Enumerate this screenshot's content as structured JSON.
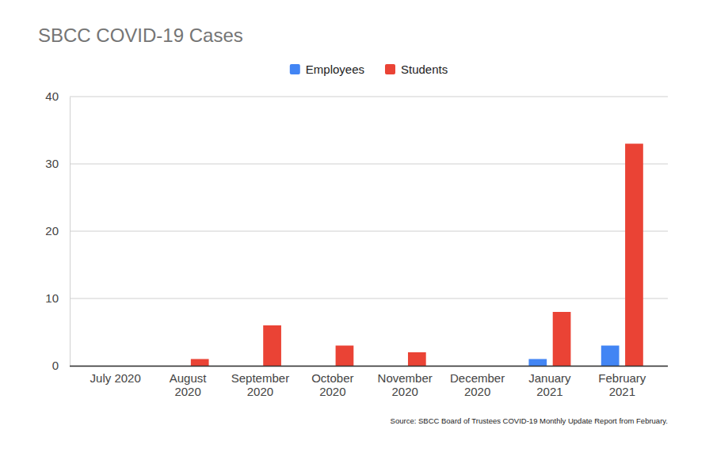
{
  "chart_data": {
    "type": "bar",
    "title": "SBCC COVID-19 Cases",
    "source": "Source: SBCC Board of Trustees COVID-19 Monthly Update Report from February.",
    "categories": [
      "July 2020",
      "August 2020",
      "September 2020",
      "October 2020",
      "November 2020",
      "December 2020",
      "January 2021",
      "February 2021"
    ],
    "series": [
      {
        "name": "Employees",
        "color": "#4285f4",
        "values": [
          0,
          0,
          0,
          0,
          0,
          0,
          1,
          3
        ]
      },
      {
        "name": "Students",
        "color": "#ea4335",
        "values": [
          0,
          1,
          6,
          3,
          2,
          0,
          8,
          33
        ]
      }
    ],
    "ylim": [
      0,
      40
    ],
    "yticks": [
      0,
      10,
      20,
      30,
      40
    ],
    "grid": true,
    "legend": "top"
  }
}
